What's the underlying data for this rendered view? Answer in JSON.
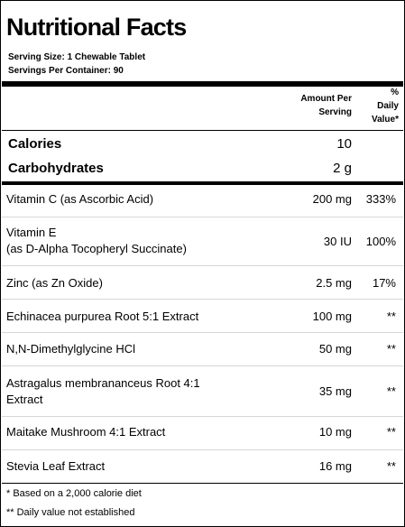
{
  "title": "Nutritional Facts",
  "serving_size": "Serving Size:  1 Chewable Tablet",
  "servings_per_container": "Servings Per Container:  90",
  "header": {
    "amount_line1": "Amount Per",
    "amount_line2": "Serving",
    "dv_line1": "%",
    "dv_line2": "Daily",
    "dv_line3": "Value*"
  },
  "calories": {
    "label": "Calories",
    "value": "10"
  },
  "carbohydrates": {
    "label": "Carbohydrates",
    "value": "2 g"
  },
  "nutrients": [
    {
      "name": "Vitamin C (as Ascorbic Acid)",
      "amount": "200 mg",
      "dv": "333%"
    },
    {
      "name_line1": "Vitamin E",
      "name_line2": "(as D-Alpha Tocopheryl Succinate)",
      "amount": "30 IU",
      "dv": "100%"
    },
    {
      "name": "Zinc (as Zn Oxide)",
      "amount": "2.5 mg",
      "dv": "17%"
    },
    {
      "name": "Echinacea purpurea Root 5:1 Extract",
      "amount": "100 mg",
      "dv": "**"
    },
    {
      "name": "N,N-Dimethylglycine HCl",
      "amount": "50 mg",
      "dv": "**"
    },
    {
      "name_line1": "Astragalus membrananceus Root 4:1",
      "name_line2": "Extract",
      "amount": "35 mg",
      "dv": "**"
    },
    {
      "name": "Maitake Mushroom 4:1 Extract",
      "amount": "10 mg",
      "dv": "**"
    },
    {
      "name": "Stevia Leaf Extract",
      "amount": "16 mg",
      "dv": "**"
    }
  ],
  "footnotes": [
    "* Based on a 2,000 calorie diet",
    "** Daily value not established"
  ]
}
